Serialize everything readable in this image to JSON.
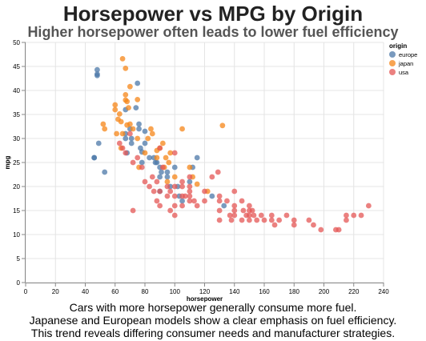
{
  "chart_data": {
    "type": "scatter",
    "title": "Horsepower vs MPG by Origin",
    "subtitle": "Higher horsepower often leads to lower fuel efficiency",
    "xlabel": "horsepower",
    "ylabel": "mpg",
    "xlim": [
      0,
      240
    ],
    "ylim": [
      0,
      50
    ],
    "xticks": [
      0,
      20,
      40,
      60,
      80,
      100,
      120,
      140,
      160,
      180,
      200,
      220,
      240
    ],
    "yticks": [
      0,
      5,
      10,
      15,
      20,
      25,
      30,
      35,
      40,
      45,
      50
    ],
    "grid": true,
    "legend": {
      "title": "origin",
      "position": "top-right"
    },
    "series": [
      {
        "name": "europe",
        "color": "#4c78a8",
        "points": [
          [
            46,
            26
          ],
          [
            46,
            26
          ],
          [
            48,
            43.1
          ],
          [
            48,
            44.3
          ],
          [
            48,
            43.4
          ],
          [
            49,
            29
          ],
          [
            53,
            23
          ],
          [
            67,
            36
          ],
          [
            67,
            30
          ],
          [
            67,
            31
          ],
          [
            68,
            27
          ],
          [
            70,
            32
          ],
          [
            71,
            29
          ],
          [
            71,
            30
          ],
          [
            74,
            36.4
          ],
          [
            75,
            41.5
          ],
          [
            76,
            33
          ],
          [
            76,
            32
          ],
          [
            77,
            28
          ],
          [
            78,
            25
          ],
          [
            78,
            27.2
          ],
          [
            80,
            31.5
          ],
          [
            80,
            29
          ],
          [
            83,
            26
          ],
          [
            86,
            26
          ],
          [
            87,
            25
          ],
          [
            88,
            25
          ],
          [
            90,
            24
          ],
          [
            90,
            22
          ],
          [
            90,
            19
          ],
          [
            91,
            23
          ],
          [
            95,
            23
          ],
          [
            95,
            22
          ],
          [
            97,
            20
          ],
          [
            100,
            24
          ],
          [
            102,
            20
          ],
          [
            103,
            18
          ],
          [
            105,
            17
          ],
          [
            110,
            21
          ],
          [
            112,
            24
          ],
          [
            115,
            26
          ],
          [
            125,
            18
          ],
          [
            133,
            16
          ]
        ]
      },
      {
        "name": "japan",
        "color": "#f58518",
        "points": [
          [
            52,
            33
          ],
          [
            53,
            32
          ],
          [
            60,
            36
          ],
          [
            60,
            37
          ],
          [
            61,
            31
          ],
          [
            62,
            34
          ],
          [
            63,
            35.1
          ],
          [
            64,
            28
          ],
          [
            64,
            33.5
          ],
          [
            65,
            31
          ],
          [
            65,
            46.6
          ],
          [
            67,
            44.6
          ],
          [
            67,
            38
          ],
          [
            67,
            39.1
          ],
          [
            68,
            37.7
          ],
          [
            68,
            32.8
          ],
          [
            69,
            36.4
          ],
          [
            70,
            40.8
          ],
          [
            70,
            33
          ],
          [
            72,
            32
          ],
          [
            75,
            30
          ],
          [
            75,
            38.1
          ],
          [
            76,
            24
          ],
          [
            80,
            27
          ],
          [
            82,
            30
          ],
          [
            84,
            32
          ],
          [
            85,
            31
          ],
          [
            88,
            27.5
          ],
          [
            88,
            26
          ],
          [
            90,
            28
          ],
          [
            92,
            29
          ],
          [
            93,
            24
          ],
          [
            94,
            26
          ],
          [
            95,
            21
          ],
          [
            96,
            25
          ],
          [
            97,
            27
          ],
          [
            100,
            22
          ],
          [
            105,
            32
          ],
          [
            110,
            24
          ],
          [
            112,
            22
          ],
          [
            115,
            20.5
          ],
          [
            122,
            19
          ],
          [
            132,
            32.7
          ]
        ]
      },
      {
        "name": "usa",
        "color": "#e45756",
        "points": [
          [
            63,
            29
          ],
          [
            65,
            28
          ],
          [
            67,
            27
          ],
          [
            70,
            31
          ],
          [
            72,
            25
          ],
          [
            72,
            15
          ],
          [
            75,
            26
          ],
          [
            78,
            24
          ],
          [
            80,
            21
          ],
          [
            83,
            20
          ],
          [
            85,
            22
          ],
          [
            86,
            19
          ],
          [
            88,
            21
          ],
          [
            88,
            17
          ],
          [
            90,
            19
          ],
          [
            90,
            16
          ],
          [
            90,
            28
          ],
          [
            92,
            24
          ],
          [
            95,
            20
          ],
          [
            95,
            18
          ],
          [
            97,
            19
          ],
          [
            97,
            15
          ],
          [
            100,
            20
          ],
          [
            100,
            18
          ],
          [
            100,
            16
          ],
          [
            100,
            14
          ],
          [
            100,
            27
          ],
          [
            105,
            18
          ],
          [
            105,
            16
          ],
          [
            105,
            20
          ],
          [
            105,
            21
          ],
          [
            107,
            18
          ],
          [
            110,
            17
          ],
          [
            110,
            18
          ],
          [
            110,
            19
          ],
          [
            110,
            20
          ],
          [
            110,
            22
          ],
          [
            113,
            17
          ],
          [
            115,
            16
          ],
          [
            120,
            17
          ],
          [
            120,
            19
          ],
          [
            125,
            22
          ],
          [
            129,
            23
          ],
          [
            130,
            15
          ],
          [
            130,
            17
          ],
          [
            130,
            18
          ],
          [
            130,
            13
          ],
          [
            135,
            17
          ],
          [
            137,
            14
          ],
          [
            138,
            13
          ],
          [
            140,
            14
          ],
          [
            140,
            15
          ],
          [
            140,
            16
          ],
          [
            140,
            19
          ],
          [
            145,
            13
          ],
          [
            145,
            17
          ],
          [
            146,
            15
          ],
          [
            148,
            14
          ],
          [
            150,
            14
          ],
          [
            150,
            13
          ],
          [
            150,
            15
          ],
          [
            150,
            16
          ],
          [
            152,
            15
          ],
          [
            153,
            14
          ],
          [
            155,
            13
          ],
          [
            158,
            14
          ],
          [
            160,
            13
          ],
          [
            165,
            13
          ],
          [
            165,
            14
          ],
          [
            167,
            12
          ],
          [
            170,
            13
          ],
          [
            175,
            14
          ],
          [
            180,
            13
          ],
          [
            180,
            12
          ],
          [
            190,
            13
          ],
          [
            193,
            12
          ],
          [
            198,
            11
          ],
          [
            208,
            11
          ],
          [
            210,
            11
          ],
          [
            215,
            13
          ],
          [
            215,
            14
          ],
          [
            220,
            14
          ],
          [
            225,
            14
          ],
          [
            230,
            16
          ]
        ]
      }
    ]
  },
  "captions": [
    "Cars with more horsepower generally consume more fuel.",
    "Japanese and European models show a clear emphasis on fuel efficiency.",
    "This trend reveals differing consumer needs and manufacturer strategies."
  ]
}
